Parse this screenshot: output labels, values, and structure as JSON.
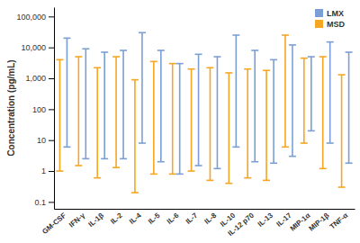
{
  "chart_data": {
    "type": "range",
    "y_label": "Concentration (pg/mL)",
    "categories": [
      "GM-CSF",
      "IFN-γ",
      "IL-1β",
      "IL-2",
      "IL-4",
      "IL-5",
      "IL-6",
      "IL-7",
      "IL-8",
      "IL-10",
      "IL-12 p70",
      "IL-13",
      "IL-17",
      "MIP-1α",
      "MIP-1β",
      "TNF-α"
    ],
    "series": [
      {
        "name": "LMX",
        "color": "#7b9fd4",
        "low": [
          6,
          2.5,
          2.5,
          2.5,
          8,
          2,
          0.8,
          1.5,
          1.2,
          6,
          2,
          1.8,
          3,
          20,
          8,
          1.8
        ],
        "high": [
          20000,
          9000,
          7000,
          8000,
          30000,
          8000,
          3000,
          6000,
          5000,
          25000,
          8000,
          4000,
          12000,
          5000,
          15000,
          7000
        ]
      },
      {
        "name": "MSD",
        "color": "#f5a623",
        "low": [
          1,
          1.5,
          0.6,
          1.3,
          0.2,
          0.8,
          0.8,
          1,
          0.5,
          0.4,
          0.6,
          0.5,
          6,
          8,
          1.2,
          0.3
        ],
        "high": [
          4000,
          5000,
          2200,
          5000,
          900,
          3500,
          3000,
          2000,
          2200,
          1500,
          2000,
          1800,
          25000,
          4500,
          5000,
          1300
        ]
      }
    ],
    "log": "y",
    "ylim": [
      0.06,
      200000
    ],
    "yticks": [
      0.1,
      1,
      10,
      100,
      {
        "value": 1000,
        "label": "1,000"
      },
      {
        "value": 10000,
        "label": "10,000"
      },
      {
        "value": 100000,
        "label": "100,000"
      }
    ],
    "legend": "top-right",
    "grid": false
  }
}
